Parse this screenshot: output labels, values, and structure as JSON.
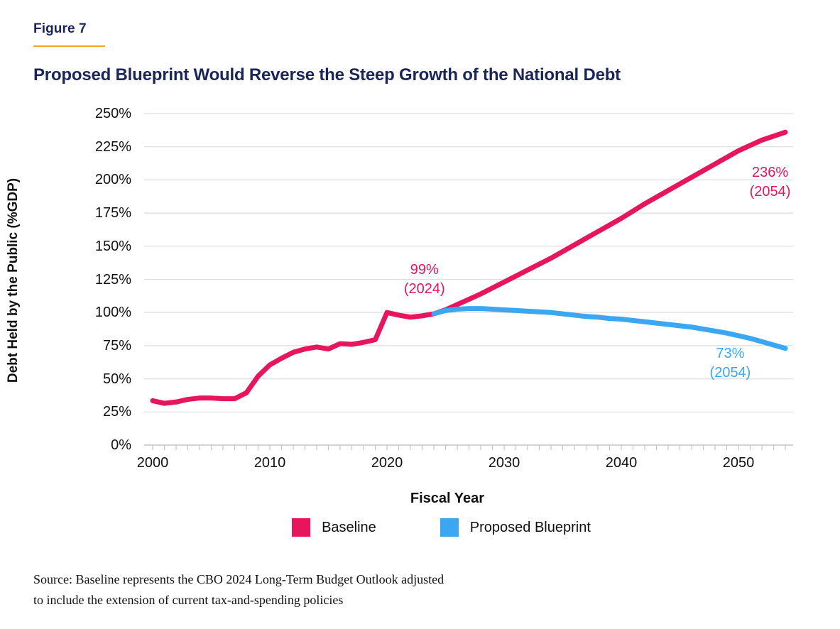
{
  "header": {
    "figure_label": "Figure 7",
    "title": "Proposed Blueprint Would Reverse the Steep Growth of the National Debt"
  },
  "colors": {
    "baseline": "#E6155C",
    "blueprint": "#3BA7F0",
    "title_navy": "#1B2556",
    "rule_orange": "#F5A623",
    "gridline": "#DEDEDE",
    "axis_line": "#C4C4C4"
  },
  "source": {
    "line1": "Source: Baseline represents the CBO 2024 Long-Term Budget Outlook adjusted",
    "line2": "to include the extension of current tax-and-spending policies"
  },
  "chart_data": {
    "type": "line",
    "title": "Proposed Blueprint Would Reverse the Steep Growth of the National Debt",
    "xlabel": "Fiscal Year",
    "ylabel": "Debt Held by the Public (%GDP)",
    "ylim": [
      0,
      250
    ],
    "y_tick_step": 25,
    "y_ticks": [
      0,
      25,
      50,
      75,
      100,
      125,
      150,
      175,
      200,
      225,
      250
    ],
    "x_ticks": [
      2000,
      2010,
      2020,
      2030,
      2040,
      2050
    ],
    "minor_x_ticks_start": 2000,
    "minor_x_ticks_end": 2054,
    "grid": true,
    "legend_position": "bottom",
    "series": [
      {
        "name": "Baseline",
        "color": "#E6155C",
        "x": [
          2000,
          2001,
          2002,
          2003,
          2004,
          2005,
          2006,
          2007,
          2008,
          2009,
          2010,
          2011,
          2012,
          2013,
          2014,
          2015,
          2016,
          2017,
          2018,
          2019,
          2020,
          2021,
          2022,
          2023,
          2024,
          2025,
          2026,
          2027,
          2028,
          2029,
          2030,
          2031,
          2032,
          2033,
          2034,
          2035,
          2036,
          2037,
          2038,
          2039,
          2040,
          2041,
          2042,
          2043,
          2044,
          2045,
          2046,
          2047,
          2048,
          2049,
          2050,
          2051,
          2052,
          2053,
          2054
        ],
        "values": [
          33.5,
          31.5,
          32.5,
          34.5,
          35.5,
          35.5,
          35,
          35,
          39.5,
          52,
          60.5,
          65.5,
          70,
          72.5,
          74,
          72.5,
          76.5,
          76,
          77.5,
          79.5,
          100,
          98,
          96.5,
          97.5,
          99,
          102,
          106,
          110,
          114,
          118.5,
          123,
          127.5,
          132,
          136.5,
          141,
          146,
          151,
          156,
          161,
          166,
          171,
          176.5,
          182,
          187,
          192,
          197,
          202,
          207,
          212,
          217,
          222,
          226,
          230,
          233,
          236
        ]
      },
      {
        "name": "Proposed Blueprint",
        "color": "#3BA7F0",
        "x": [
          2024,
          2025,
          2026,
          2027,
          2028,
          2029,
          2030,
          2031,
          2032,
          2033,
          2034,
          2035,
          2036,
          2037,
          2038,
          2039,
          2040,
          2041,
          2042,
          2043,
          2044,
          2045,
          2046,
          2047,
          2048,
          2049,
          2050,
          2051,
          2052,
          2053,
          2054
        ],
        "values": [
          99,
          101.5,
          102.5,
          103,
          103,
          102.5,
          102,
          101.5,
          101,
          100.5,
          100,
          99,
          98,
          97,
          96.5,
          95.5,
          95,
          94,
          93,
          92,
          91,
          90,
          89,
          87.5,
          86,
          84.5,
          82.5,
          80.5,
          78,
          75.5,
          73
        ]
      }
    ],
    "annotations": [
      {
        "lines": [
          "99%",
          "(2024)"
        ],
        "color": "#E6155C",
        "year": 2023.2,
        "value": 125
      },
      {
        "lines": [
          "236%",
          "(2054)"
        ],
        "color": "#E6155C",
        "year": 2052.7,
        "value": 198
      },
      {
        "lines": [
          "73%",
          "(2054)"
        ],
        "color": "#3BA7F0",
        "year": 2049.3,
        "value": 61.5
      }
    ]
  }
}
